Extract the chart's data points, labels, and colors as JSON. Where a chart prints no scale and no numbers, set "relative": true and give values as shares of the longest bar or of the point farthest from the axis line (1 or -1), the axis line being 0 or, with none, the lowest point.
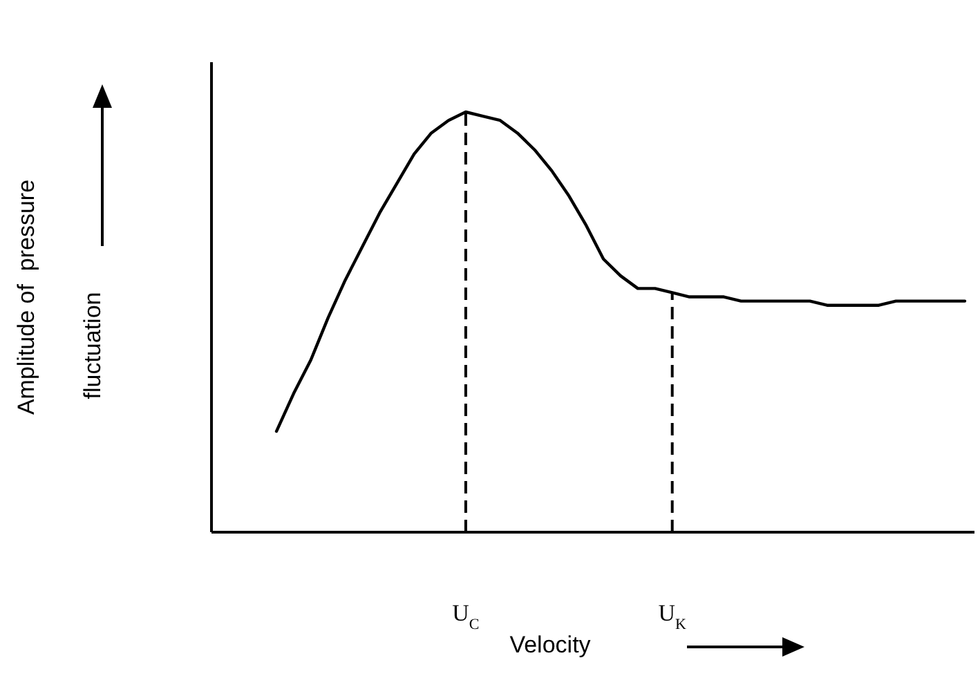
{
  "chart_data": {
    "type": "line",
    "relative": true,
    "xlabel": "Velocity",
    "ylabel": "Amplitude of  pressure\nfluctuation",
    "marker": "none",
    "line_style": "solid",
    "categories": [
      null,
      null,
      null,
      null,
      null,
      null,
      null,
      null,
      null,
      null,
      null,
      "U$_{C}$",
      null,
      null,
      null,
      null,
      null,
      null,
      null,
      null,
      null,
      null,
      null,
      "U$_{K}$",
      null,
      null,
      null,
      null,
      null,
      null,
      null,
      null,
      null,
      null,
      null,
      null,
      null,
      null,
      null,
      null,
      null
    ],
    "series": [
      {
        "color": "#000000",
        "values": [
          0.24,
          0.33,
          0.41,
          0.51,
          0.6,
          0.68,
          0.76,
          0.83,
          0.9,
          0.95,
          0.98,
          1,
          0.99,
          0.98,
          0.95,
          0.91,
          0.86,
          0.8,
          0.73,
          0.65,
          0.61,
          0.58,
          0.58,
          0.57,
          0.56,
          0.56,
          0.56,
          0.55,
          0.55,
          0.55,
          0.55,
          0.55,
          0.54,
          0.54,
          0.54,
          0.54,
          0.55,
          0.55,
          0.55,
          0.55,
          0.55
        ]
      }
    ],
    "ref_lines": [
      {
        "axis": "x",
        "value": "U$_{C}$",
        "line_style": "dashed",
        "color": "#000000"
      },
      {
        "axis": "x",
        "value": "U$_{K}$",
        "line_style": "dashed",
        "color": "#000000"
      }
    ]
  }
}
